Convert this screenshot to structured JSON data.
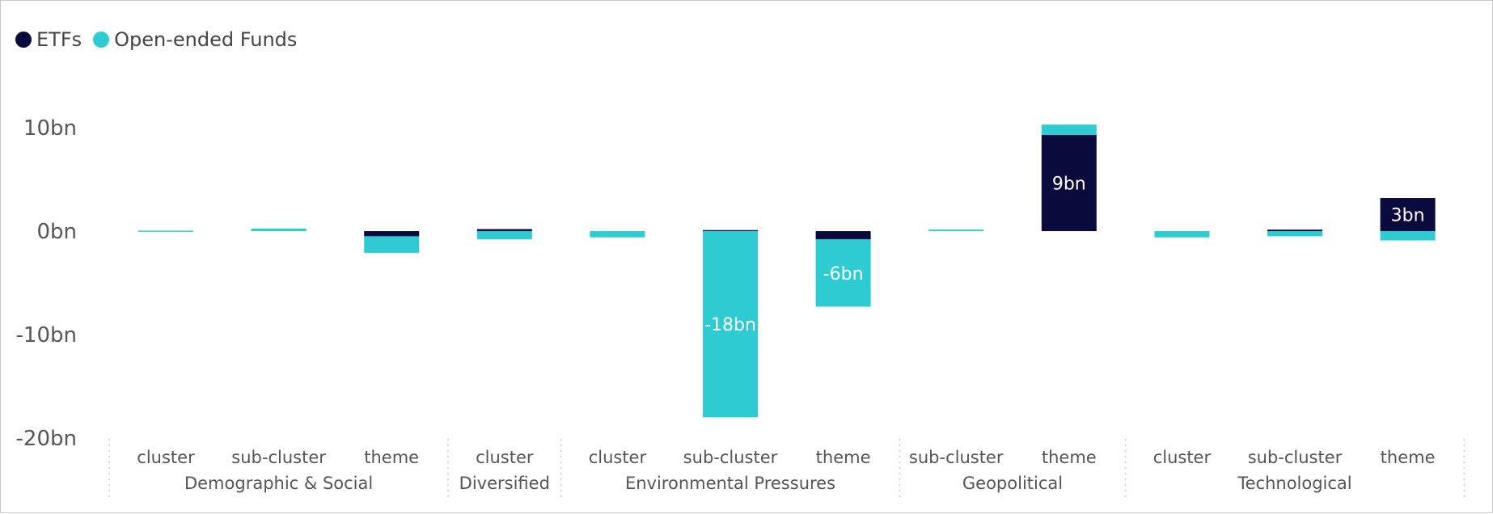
{
  "chart_data": {
    "type": "bar",
    "stacked": true,
    "legend": {
      "placement": "top-left",
      "items": [
        {
          "name": "ETFs",
          "color": "#0b0a3c"
        },
        {
          "name": "Open-ended Funds",
          "color": "#2ecbd2"
        }
      ]
    },
    "groups": [
      {
        "label": "Demographic & Social",
        "categories": [
          "cluster",
          "sub-cluster",
          "theme"
        ]
      },
      {
        "label": "Diversified",
        "categories": [
          "cluster"
        ]
      },
      {
        "label": "Environmental Pressures",
        "categories": [
          "cluster",
          "sub-cluster",
          "theme"
        ]
      },
      {
        "label": "Geopolitical",
        "categories": [
          "sub-cluster",
          "theme"
        ]
      },
      {
        "label": "Technological",
        "categories": [
          "cluster",
          "sub-cluster",
          "theme"
        ]
      }
    ],
    "series": [
      {
        "name": "ETFs",
        "color": "#0b0a3c",
        "values": [
          0,
          0,
          -0.5,
          0.2,
          0,
          0.1,
          -0.8,
          0,
          9.3,
          0,
          0.15,
          3.2
        ],
        "labels": [
          "",
          "",
          "",
          "",
          "",
          "",
          "",
          "",
          "9bn",
          "",
          "",
          "3bn"
        ]
      },
      {
        "name": "Open-ended Funds",
        "color": "#2ecbd2",
        "values": [
          0.05,
          0.25,
          -1.6,
          -0.8,
          -0.6,
          -18,
          -6.5,
          0.15,
          1.0,
          -0.6,
          -0.5,
          -0.9
        ],
        "labels": [
          "",
          "",
          "",
          "",
          "",
          "-18bn",
          "-6bn",
          "",
          "",
          "",
          "",
          ""
        ]
      }
    ],
    "y_ticks": [
      10,
      0,
      -10,
      -20
    ],
    "y_tick_labels": [
      "10bn",
      "0bn",
      "-10bn",
      "-20bn"
    ],
    "ylim": [
      -20,
      12
    ],
    "grid": false
  }
}
